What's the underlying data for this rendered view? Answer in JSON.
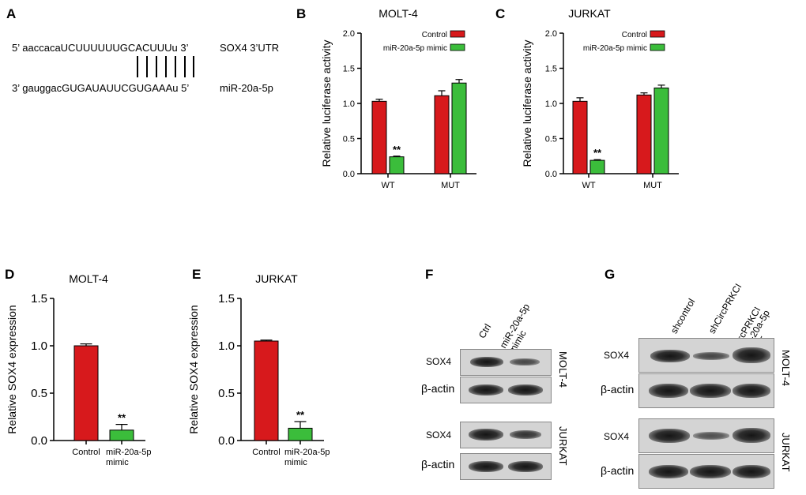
{
  "panels": {
    "A": "A",
    "B": "B",
    "C": "C",
    "D": "D",
    "E": "E",
    "F": "F",
    "G": "G"
  },
  "panel_a": {
    "top_seq": "5’ aaccacaUCUUUUUUGCACUUUu  3’",
    "top_label": "SOX4 3’UTR",
    "bottom_seq": "3’ gauggacGUGAUAUUCGUGAAAu  5’",
    "bottom_label": "miR-20a-5p"
  },
  "chart_data": [
    {
      "id": "B",
      "type": "bar",
      "title": "MOLT-4",
      "ylabel": "Relative luciferase activity",
      "ylim": [
        0,
        2.0
      ],
      "yticks": [
        "0.0",
        "0.5",
        "1.0",
        "1.5",
        "2.0"
      ],
      "categories": [
        "WT",
        "MUT"
      ],
      "legend_position": "top-right",
      "series": [
        {
          "name": "Control",
          "color": "#d7191c",
          "values": [
            1.03,
            1.11
          ],
          "errors": [
            0.03,
            0.07
          ]
        },
        {
          "name": "miR-20a-5p mimic",
          "color": "#3bbd3b",
          "values": [
            0.24,
            1.29
          ],
          "errors": [
            0.01,
            0.05
          ]
        }
      ],
      "annotations": [
        {
          "category": "WT",
          "series": 1,
          "text": "**"
        }
      ]
    },
    {
      "id": "C",
      "type": "bar",
      "title": "JURKAT",
      "ylabel": "Relative luciferase activity",
      "ylim": [
        0,
        2.0
      ],
      "yticks": [
        "0.0",
        "0.5",
        "1.0",
        "1.5",
        "2.0"
      ],
      "categories": [
        "WT",
        "MUT"
      ],
      "legend_position": "top-right",
      "series": [
        {
          "name": "Control",
          "color": "#d7191c",
          "values": [
            1.03,
            1.12
          ],
          "errors": [
            0.05,
            0.03
          ]
        },
        {
          "name": "miR-20a-5p mimic",
          "color": "#3bbd3b",
          "values": [
            0.19,
            1.22
          ],
          "errors": [
            0.01,
            0.04
          ]
        }
      ],
      "annotations": [
        {
          "category": "WT",
          "series": 1,
          "text": "**"
        }
      ]
    },
    {
      "id": "D",
      "type": "bar",
      "title": "MOLT-4",
      "ylabel": "Relative SOX4 expression",
      "ylim": [
        0,
        1.5
      ],
      "yticks": [
        "0.0",
        "0.5",
        "1.0",
        "1.5"
      ],
      "categories": [
        "Control",
        "miR-20a-5p mimic"
      ],
      "values": [
        1.0,
        0.11
      ],
      "errors": [
        0.02,
        0.06
      ],
      "colors": [
        "#d7191c",
        "#3bbd3b"
      ],
      "annotations": [
        {
          "index": 1,
          "text": "**"
        }
      ]
    },
    {
      "id": "E",
      "type": "bar",
      "title": "JURKAT",
      "ylabel": "Relative SOX4 expression",
      "ylim": [
        0,
        1.5
      ],
      "yticks": [
        "0.0",
        "0.5",
        "1.0",
        "1.5"
      ],
      "categories": [
        "Control",
        "miR-20a-5p mimic"
      ],
      "values": [
        1.05,
        0.13
      ],
      "errors": [
        0.01,
        0.07
      ],
      "colors": [
        "#d7191c",
        "#3bbd3b"
      ],
      "annotations": [
        {
          "index": 1,
          "text": "**"
        }
      ]
    }
  ],
  "panel_f": {
    "conditions": [
      "Ctrl",
      "miR-20a-5p\nmimic"
    ],
    "rows": [
      "SOX4",
      "β-actin"
    ],
    "cell_lines": [
      "MOLT-4",
      "JURKAT"
    ]
  },
  "panel_g": {
    "conditions": [
      "shcontrol",
      "shCircPRKCI",
      "shCircPRKCI\n+ miR-20a-5p\ninhibitor"
    ],
    "rows": [
      "SOX4",
      "β-actin"
    ],
    "cell_lines": [
      "MOLT-4",
      "JURKAT"
    ]
  }
}
